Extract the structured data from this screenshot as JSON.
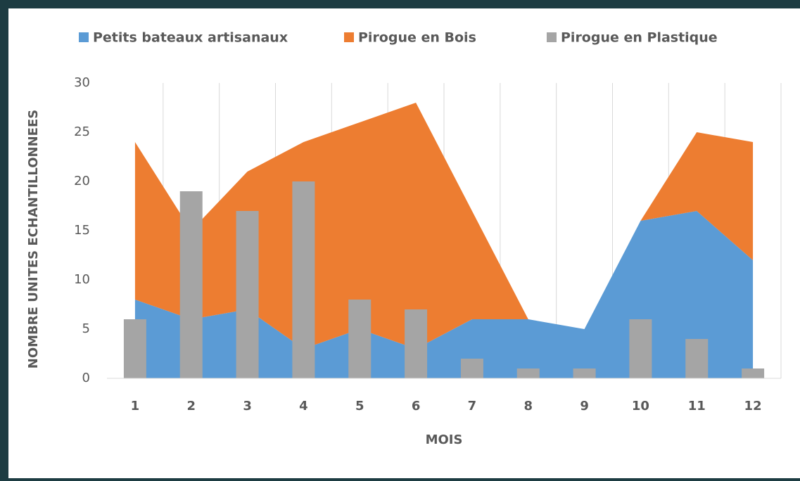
{
  "chart_data": {
    "type": "combo",
    "x_label": "MOIS",
    "y_label": "NOMBRE UNITES  ECHANTILLONNEES",
    "categories": [
      "1",
      "2",
      "3",
      "4",
      "5",
      "6",
      "7",
      "8",
      "9",
      "10",
      "11",
      "12"
    ],
    "series": [
      {
        "name": "Petits bateaux artisanaux",
        "type": "area",
        "stacked": true,
        "color": "#5b9bd5",
        "values": [
          8,
          6,
          7,
          3,
          5,
          3,
          6,
          6,
          5,
          16,
          17,
          12
        ]
      },
      {
        "name": "Pirogue en Bois",
        "type": "area",
        "stacked": true,
        "color": "#ed7d31",
        "values": [
          16,
          9,
          14,
          21,
          21,
          25,
          11,
          0,
          0,
          0,
          8,
          12
        ]
      },
      {
        "name": "Pirogue en Plastique",
        "type": "bar",
        "color": "#a5a5a5",
        "values": [
          6,
          19,
          17,
          20,
          8,
          7,
          2,
          1,
          1,
          6,
          4,
          1
        ]
      }
    ],
    "ylim": [
      0,
      30
    ],
    "yticks": [
      0,
      5,
      10,
      15,
      20,
      25,
      30
    ],
    "grid": "vertical",
    "legend": "top"
  }
}
